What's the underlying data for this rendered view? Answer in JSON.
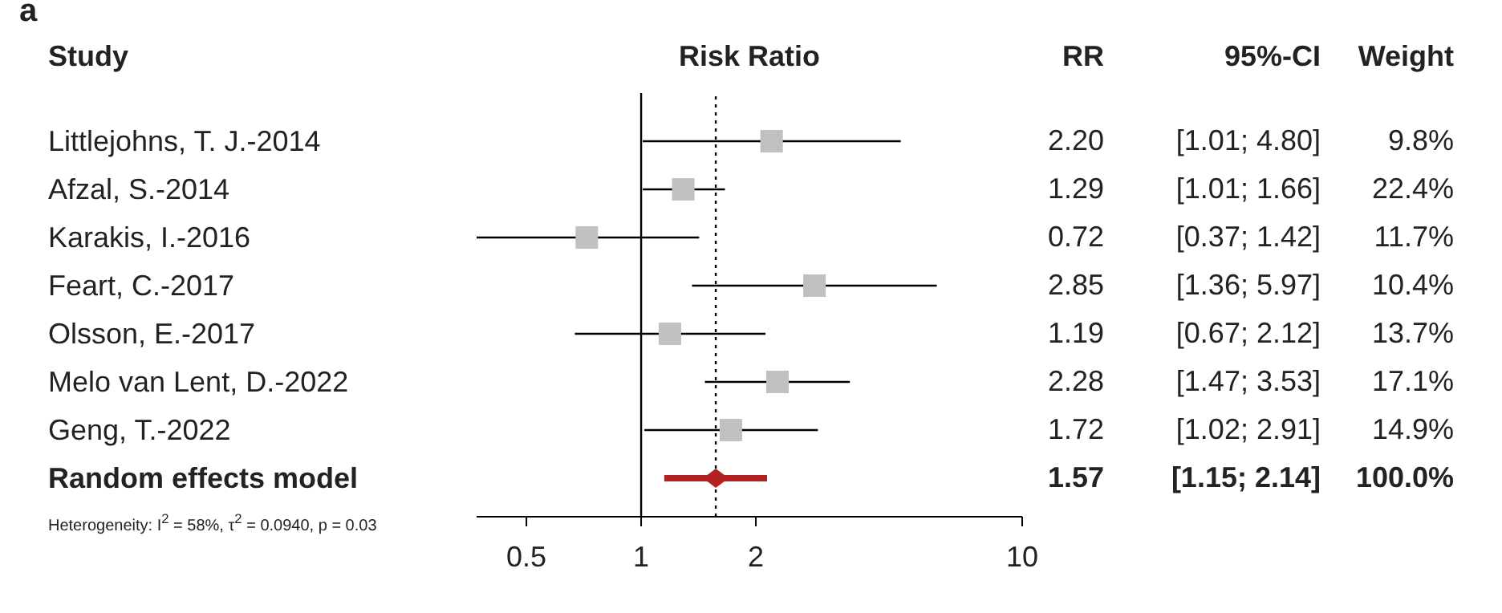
{
  "chart_data": {
    "type": "scatter",
    "orientation": "horizontal",
    "title": "a",
    "xlabel": "Risk Ratio",
    "ylabel": "Study",
    "categories": [
      "Littlejohns, T. J.-2014",
      "Afzal, S.-2014",
      "Karakis, I.-2016",
      "Feart, C.-2017",
      "Olsson, E.-2017",
      "Melo van Lent, D.-2022",
      "Geng, T.-2022",
      "Random effects model"
    ],
    "series": [
      {
        "color": "#c0c0c0",
        "marker": "square",
        "values": [
          2.2,
          1.29,
          0.72,
          2.85,
          1.19,
          2.28,
          1.72,
          null
        ],
        "errors": [
          [
            1.01,
            4.8
          ],
          [
            1.01,
            1.66
          ],
          [
            0.37,
            1.42
          ],
          [
            1.36,
            5.97
          ],
          [
            0.67,
            2.12
          ],
          [
            1.47,
            3.53
          ],
          [
            1.02,
            2.91
          ],
          null
        ],
        "value_labels": [
          "2.20",
          "1.29",
          "0.72",
          "2.85",
          "1.19",
          "2.28",
          "1.72",
          null
        ]
      },
      {
        "color": "#b22222",
        "marker": "diamond",
        "values": [
          null,
          null,
          null,
          null,
          null,
          null,
          null,
          1.57
        ],
        "errors": [
          null,
          null,
          null,
          null,
          null,
          null,
          null,
          [
            1.15,
            2.14
          ]
        ]
      }
    ],
    "log": "x",
    "xlim": [
      0.37,
      10
    ],
    "xticks": [
      0.5,
      1,
      2,
      10
    ],
    "ref_lines": [
      {
        "axis": "x",
        "value": 1,
        "color": "#000000",
        "line_style": "solid"
      },
      {
        "axis": "x",
        "value": 1.57,
        "color": "#000000",
        "line_style": "dotted"
      }
    ],
    "annotations": [
      "RR",
      "95%-CI",
      "Weight",
      "[1.01; 4.80]",
      "[1.01; 1.66]",
      "[0.37; 1.42]",
      "[1.36; 5.97]",
      "[0.67; 2.12]",
      "[1.47; 3.53]",
      "[1.02; 2.91]",
      "[1.15; 2.14]",
      "9.8%",
      "22.4%",
      "11.7%",
      "10.4%",
      "13.7%",
      "17.1%",
      "14.9%",
      "100.0%",
      "1.57",
      "Heterogeneity: I$^{2}$ = 58%, τ$^{2}$ = 0.0940, p = 0.03"
    ]
  }
}
